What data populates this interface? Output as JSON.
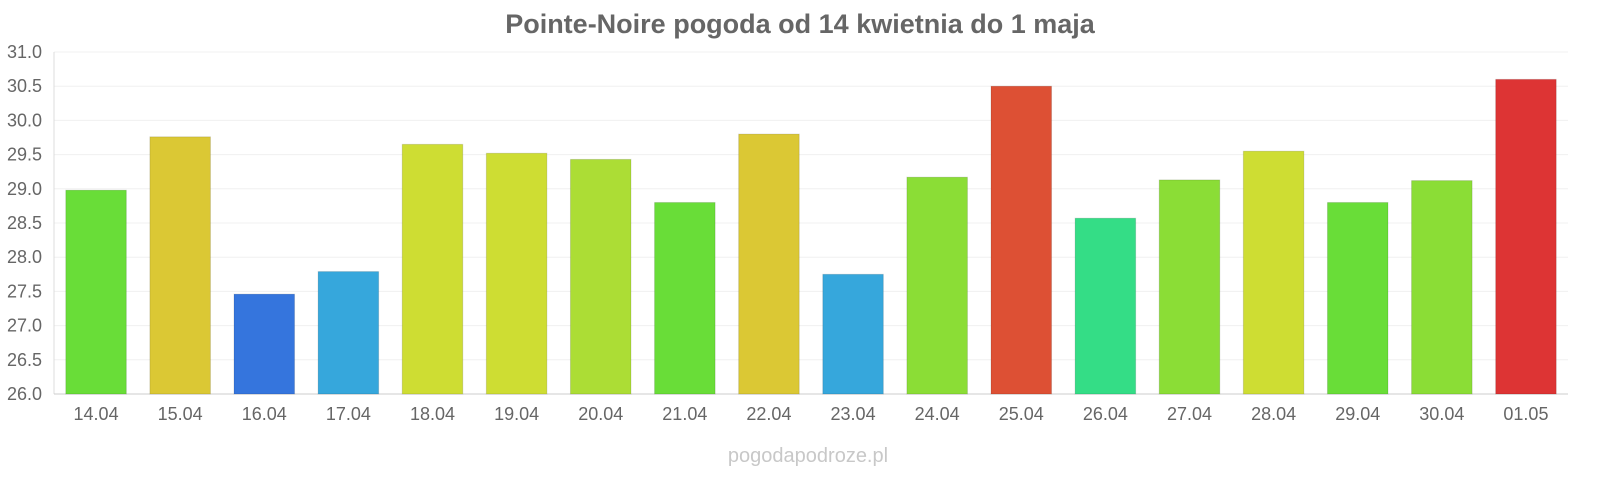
{
  "chart_data": {
    "type": "bar",
    "title": "Pointe-Noire pogoda od 14 kwietnia do 1 maja",
    "xlabel": "",
    "ylabel": "",
    "categories": [
      "14.04",
      "15.04",
      "16.04",
      "17.04",
      "18.04",
      "19.04",
      "20.04",
      "21.04",
      "22.04",
      "23.04",
      "24.04",
      "25.04",
      "26.04",
      "27.04",
      "28.04",
      "29.04",
      "30.04",
      "01.05"
    ],
    "values": [
      28.98,
      29.76,
      27.46,
      27.79,
      29.65,
      29.52,
      29.43,
      28.8,
      29.8,
      27.75,
      29.17,
      30.5,
      28.57,
      29.13,
      29.55,
      28.8,
      29.12,
      30.6
    ],
    "colors": [
      "#69dd38",
      "#dbc834",
      "#3575dd",
      "#36a7dc",
      "#cedd33",
      "#cedd33",
      "#acdd35",
      "#69dd38",
      "#dbc834",
      "#36a7dc",
      "#8bdd36",
      "#dd5034",
      "#34dd86",
      "#8bdd36",
      "#cedd33",
      "#69dd38",
      "#8bdd36",
      "#dd3434"
    ],
    "ylim": [
      26.0,
      31.0
    ],
    "y_ticks": [
      "26.0",
      "26.5",
      "27.0",
      "27.5",
      "28.0",
      "28.5",
      "29.0",
      "29.5",
      "30.0",
      "30.5",
      "31.0"
    ],
    "grid": true,
    "legend": "none"
  },
  "footer": {
    "watermark": "pogodapodroze.pl"
  }
}
